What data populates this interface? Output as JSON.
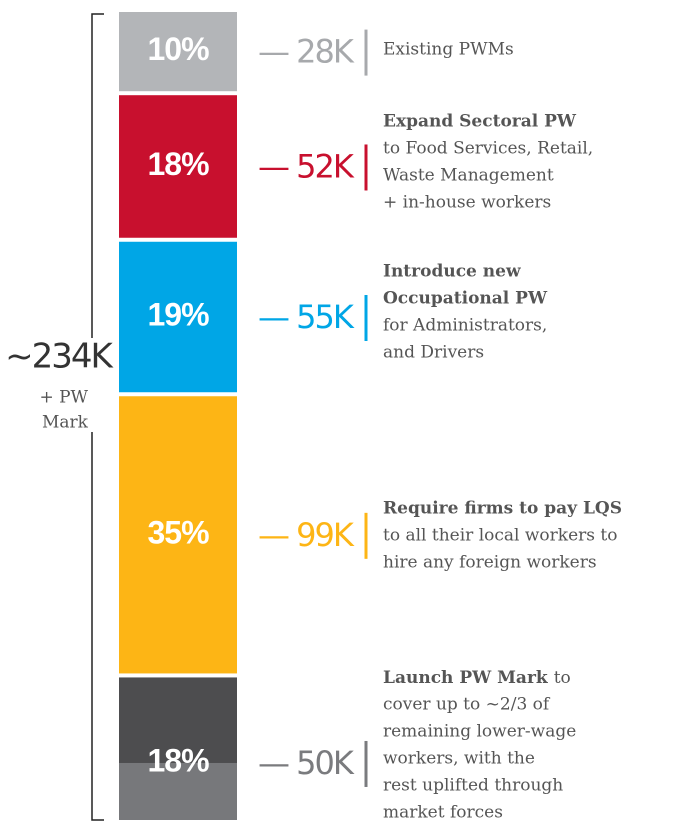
{
  "chart_data": {
    "type": "stacked_column",
    "total_label": "~234K",
    "total_note": [
      "+ PW",
      "Mark"
    ],
    "series": [
      {
        "color": "#b3b5b8",
        "label_color": "#a7a9ac",
        "values": [
          10
        ],
        "value_labels": [
          "10%"
        ],
        "counts": [
          28000
        ],
        "count_labels": [
          "28K"
        ],
        "heading": [],
        "text": [
          "Existing PWMs"
        ]
      },
      {
        "color": "#c8102e",
        "label_color": "#c8102e",
        "values": [
          18
        ],
        "value_labels": [
          "18%"
        ],
        "counts": [
          52000
        ],
        "count_labels": [
          "52K"
        ],
        "heading": [
          "Expand Sectoral PW"
        ],
        "text": [
          "to Food Services, Retail,",
          "Waste Management",
          "+ in-house workers"
        ]
      },
      {
        "color": "#00a6e6",
        "label_color": "#00a6e6",
        "values": [
          19
        ],
        "value_labels": [
          "19%"
        ],
        "counts": [
          55000
        ],
        "count_labels": [
          "55K"
        ],
        "heading": [
          "Introduce new",
          "Occupational PW"
        ],
        "text": [
          "for Administrators,",
          "and Drivers"
        ]
      },
      {
        "color": "#fdb515",
        "label_color": "#fdb515",
        "values": [
          35
        ],
        "value_labels": [
          "35%"
        ],
        "counts": [
          99000
        ],
        "count_labels": [
          "99K"
        ],
        "heading": [
          "Require firms to pay LQS"
        ],
        "text": [
          "to all their local workers to",
          "hire any foreign workers"
        ]
      },
      {
        "color": "#4d4d4f",
        "color_lower": "#77787b",
        "label_color": "#7a7b7e",
        "values": [
          18
        ],
        "value_labels": [
          "18%"
        ],
        "counts": [
          50000
        ],
        "count_labels": [
          "50K"
        ],
        "heading": [
          "Launch PW Mark"
        ],
        "inline_heading": true,
        "text": [
          "to",
          "cover up to ~2/3 of",
          "remaining lower-wage",
          "workers, with the",
          "rest uplifted through",
          "market forces"
        ]
      }
    ]
  }
}
